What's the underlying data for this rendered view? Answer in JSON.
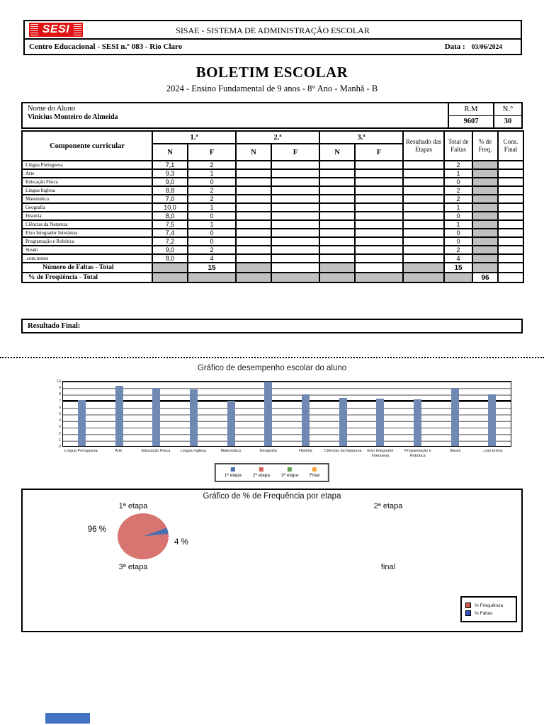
{
  "header": {
    "logo_text": "SESI",
    "system_title": "SISAE - SISTEMA DE ADMINISTRAÇÃO ESCOLAR",
    "school_name": "Centro Educacional - SESI n.º 083 - Rio Claro",
    "date_label": "Data :",
    "date_value": "03/06/2024"
  },
  "document": {
    "title": "BOLETIM ESCOLAR",
    "subtitle": "2024 - Ensino Fundamental de 9 anos - 8° Ano - Manhã - B"
  },
  "student": {
    "name_label": "Nome do Aluno",
    "name": "Vinícius Monteiro de Almeida",
    "rm_label": "R.M",
    "rm_value": "9607",
    "number_label": "N.°",
    "number_value": "30"
  },
  "grades_table": {
    "component_header": "Componente curricular",
    "etapa1_header": "1.ª",
    "etapa2_header": "2.ª",
    "etapa3_header": "3.ª",
    "n_header": "N",
    "f_header": "F",
    "resultado_header": "Resultado das Etapas",
    "total_faltas_header": "Total de Faltas",
    "freq_header": "% de Freq.",
    "cons_header": "Cons. Final",
    "rows": [
      {
        "subject": "Língua Portuguesa",
        "n1": "7,1",
        "f1": "2",
        "n2": "",
        "f2": "",
        "n3": "",
        "f3": "",
        "resultado": "",
        "total": "2",
        "cons": ""
      },
      {
        "subject": "Arte",
        "n1": "9,3",
        "f1": "1",
        "n2": "",
        "f2": "",
        "n3": "",
        "f3": "",
        "resultado": "",
        "total": "1",
        "cons": ""
      },
      {
        "subject": "Educação Física",
        "n1": "9,0",
        "f1": "0",
        "n2": "",
        "f2": "",
        "n3": "",
        "f3": "",
        "resultado": "",
        "total": "0",
        "cons": ""
      },
      {
        "subject": "Língua Inglesa",
        "n1": "8,8",
        "f1": "2",
        "n2": "",
        "f2": "",
        "n3": "",
        "f3": "",
        "resultado": "",
        "total": "2",
        "cons": ""
      },
      {
        "subject": "Matemática",
        "n1": "7,0",
        "f1": "2",
        "n2": "",
        "f2": "",
        "n3": "",
        "f3": "",
        "resultado": "",
        "total": "2",
        "cons": ""
      },
      {
        "subject": "Geografia",
        "n1": "10,0",
        "f1": "1",
        "n2": "",
        "f2": "",
        "n3": "",
        "f3": "",
        "resultado": "",
        "total": "1",
        "cons": ""
      },
      {
        "subject": "História",
        "n1": "8,0",
        "f1": "0",
        "n2": "",
        "f2": "",
        "n3": "",
        "f3": "",
        "resultado": "",
        "total": "0",
        "cons": ""
      },
      {
        "subject": "Ciências da Natureza",
        "n1": "7,5",
        "f1": "1",
        "n2": "",
        "f2": "",
        "n3": "",
        "f3": "",
        "resultado": "",
        "total": "1",
        "cons": ""
      },
      {
        "subject": "Eixo Integrador Interáreas",
        "n1": "7,4",
        "f1": "0",
        "n2": "",
        "f2": "",
        "n3": "",
        "f3": "",
        "resultado": "",
        "total": "0",
        "cons": ""
      },
      {
        "subject": "Programação e Robótica",
        "n1": "7,2",
        "f1": "0",
        "n2": "",
        "f2": "",
        "n3": "",
        "f3": "",
        "resultado": "",
        "total": "0",
        "cons": ""
      },
      {
        "subject": "Steam",
        "n1": "9,0",
        "f1": "2",
        "n2": "",
        "f2": "",
        "n3": "",
        "f3": "",
        "resultado": "",
        "total": "2",
        "cons": ""
      },
      {
        "subject": ".com.textos",
        "n1": "8,0",
        "f1": "4",
        "n2": "",
        "f2": "",
        "n3": "",
        "f3": "",
        "resultado": "",
        "total": "4",
        "cons": ""
      }
    ],
    "faltas_total": {
      "label": "Número de Faltas - Total",
      "f1": "15",
      "f2": "",
      "f3": "",
      "total": "15",
      "cons": ""
    },
    "freq_total": {
      "label": "% de Freqüência - Total",
      "freq": "96",
      "cons": ""
    },
    "resultado_final_label": "Resultado Final:"
  },
  "chart_data": [
    {
      "type": "bar",
      "title": "Gráfico de desempenho escolar do aluno",
      "categories": [
        "Língua Portuguesa",
        "Arte",
        "Educação Física",
        "Língua Inglesa",
        "Matemática",
        "Geografia",
        "História",
        "Ciências da Natureza",
        "Eixo Integrador Interáreas",
        "Programação e Robótica",
        "Steam",
        ".com.textos"
      ],
      "series": [
        {
          "name": "1ª etapa",
          "color": "#6f88b4",
          "values": [
            7.1,
            9.3,
            9.0,
            8.8,
            7.0,
            10.0,
            8.0,
            7.5,
            7.4,
            7.2,
            9.0,
            8.0
          ]
        }
      ],
      "ylim": [
        0,
        10
      ],
      "yticks": [
        0,
        1,
        2,
        3,
        4,
        5,
        6,
        7,
        8,
        9,
        10
      ],
      "reference_line": 7,
      "grid": "on",
      "legend_position": "bottom",
      "legend": [
        {
          "label": "1ª etapa",
          "color": "#4a6fae"
        },
        {
          "label": "2ª etapa",
          "color": "#d0605a"
        },
        {
          "label": "3ª etapa",
          "color": "#62a355"
        },
        {
          "label": "Final",
          "color": "#f2a23c"
        }
      ]
    },
    {
      "type": "pie",
      "title": "Gráfico de % de Frequência por etapa",
      "slices": [
        {
          "label": "% Frequência",
          "value": 96,
          "display": "96 %",
          "color": "#d97570"
        },
        {
          "label": "% Faltas",
          "value": 4,
          "display": "4 %",
          "color": "#4a6fae"
        }
      ],
      "quadrant_labels": [
        "1ª etapa",
        "2ª etapa",
        "3ª etapa",
        "final"
      ],
      "legend_position": "bottom-right",
      "legend": [
        {
          "label": "% Frequência",
          "color": "#cd5a52"
        },
        {
          "label": "% Faltas",
          "color": "#3050c8"
        }
      ]
    }
  ],
  "footer": {
    "bar_color": "#4472c4"
  }
}
